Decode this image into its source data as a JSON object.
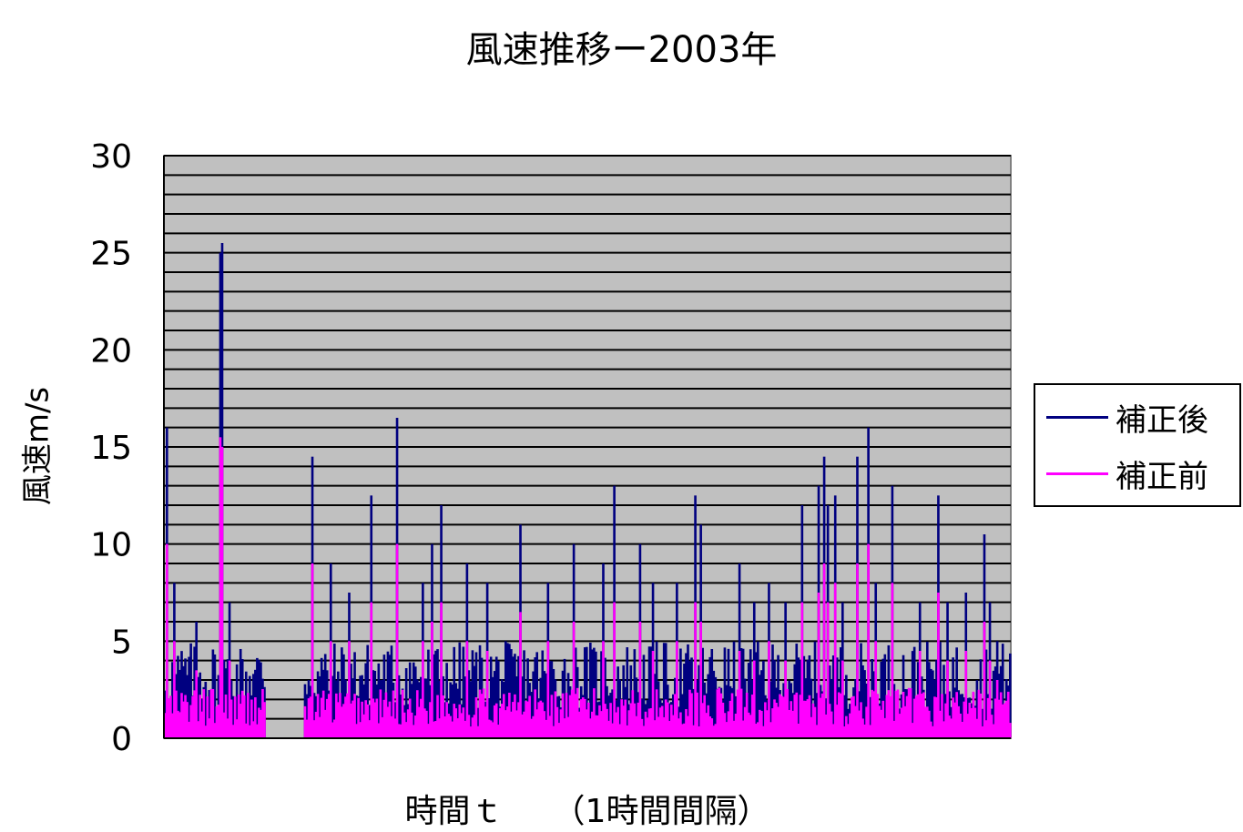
{
  "chart_data": {
    "type": "bar",
    "title": "風速推移ー2003年",
    "xlabel": "時間ｔ　　（1時間間隔）",
    "ylabel": "風速m/s",
    "ylim": [
      0,
      30
    ],
    "yticks": [
      "0",
      "5",
      "10",
      "15",
      "20",
      "25",
      "30"
    ],
    "grid": true,
    "legend_position": "right",
    "plot_background": "#c0c0c0",
    "series": [
      {
        "name": "補正後",
        "color": "#000080",
        "peaks": [
          [
            1,
            16
          ],
          [
            5,
            8
          ],
          [
            17,
            6
          ],
          [
            30,
            25
          ],
          [
            31,
            25.5
          ],
          [
            35,
            7
          ],
          [
            72,
            7
          ],
          [
            80,
            14.5
          ],
          [
            90,
            9
          ],
          [
            100,
            7.5
          ],
          [
            112,
            12.5
          ],
          [
            126,
            16.5
          ],
          [
            140,
            8
          ],
          [
            145,
            10
          ],
          [
            150,
            12
          ],
          [
            164,
            9
          ],
          [
            175,
            8
          ],
          [
            193,
            11
          ],
          [
            208,
            8
          ],
          [
            222,
            10
          ],
          [
            238,
            9
          ],
          [
            244,
            13
          ],
          [
            258,
            10
          ],
          [
            265,
            8
          ],
          [
            278,
            8
          ],
          [
            288,
            12.5
          ],
          [
            291,
            11
          ],
          [
            312,
            9
          ],
          [
            320,
            7
          ],
          [
            328,
            8
          ],
          [
            337,
            7
          ],
          [
            346,
            12
          ],
          [
            355,
            13
          ],
          [
            358,
            14.5
          ],
          [
            360,
            12
          ],
          [
            364,
            12.5
          ],
          [
            368,
            7
          ],
          [
            376,
            14.5
          ],
          [
            382,
            16
          ],
          [
            386,
            8
          ],
          [
            395,
            13
          ],
          [
            410,
            7
          ],
          [
            420,
            12.5
          ],
          [
            425,
            7
          ],
          [
            435,
            7.5
          ],
          [
            445,
            10.5
          ],
          [
            448,
            7
          ],
          [
            452,
            5
          ]
        ]
      },
      {
        "name": "補正前",
        "color": "#ff00ff",
        "peaks": [
          [
            1,
            10
          ],
          [
            5,
            5
          ],
          [
            17,
            3.5
          ],
          [
            30,
            15.5
          ],
          [
            31,
            15
          ],
          [
            35,
            4
          ],
          [
            72,
            4
          ],
          [
            80,
            9
          ],
          [
            90,
            5
          ],
          [
            100,
            5
          ],
          [
            112,
            7
          ],
          [
            126,
            10
          ],
          [
            140,
            5
          ],
          [
            145,
            6
          ],
          [
            150,
            7
          ],
          [
            164,
            5
          ],
          [
            175,
            4.5
          ],
          [
            193,
            6.5
          ],
          [
            208,
            5
          ],
          [
            222,
            6
          ],
          [
            238,
            5
          ],
          [
            244,
            7
          ],
          [
            258,
            6
          ],
          [
            265,
            4.5
          ],
          [
            278,
            5
          ],
          [
            288,
            7
          ],
          [
            291,
            6
          ],
          [
            312,
            4.5
          ],
          [
            320,
            4
          ],
          [
            328,
            5
          ],
          [
            337,
            4
          ],
          [
            346,
            7
          ],
          [
            355,
            7.5
          ],
          [
            358,
            9
          ],
          [
            360,
            7
          ],
          [
            364,
            8
          ],
          [
            368,
            4
          ],
          [
            376,
            9
          ],
          [
            382,
            10
          ],
          [
            386,
            5
          ],
          [
            395,
            8
          ],
          [
            410,
            4.5
          ],
          [
            420,
            7.5
          ],
          [
            425,
            4
          ],
          [
            435,
            4.5
          ],
          [
            445,
            6
          ],
          [
            448,
            4
          ],
          [
            452,
            3
          ]
        ]
      }
    ],
    "gaps": [
      [
        55,
        75
      ]
    ]
  }
}
